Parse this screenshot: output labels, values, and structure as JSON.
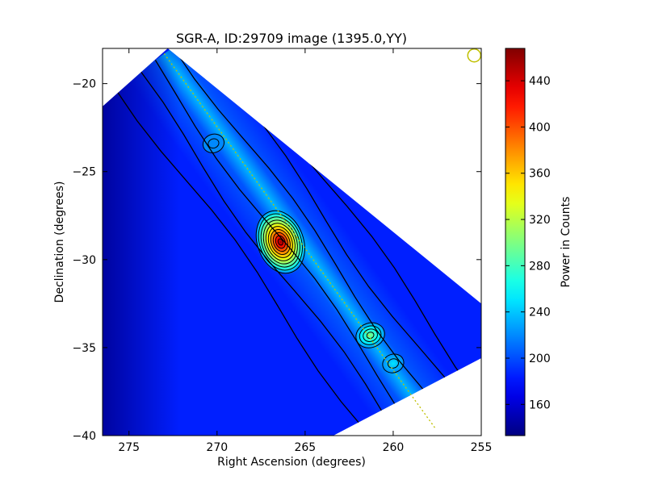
{
  "chart_data": {
    "type": "heatmap",
    "title": "SGR-A, ID:29709 image (1395.0,YY)",
    "xlabel": "Right Ascension (degrees)",
    "ylabel": "Declination (degrees)",
    "colorbar_label": "Power in Counts",
    "xlim": [
      276.5,
      255.0
    ],
    "ylim": [
      -40.0,
      -18.0
    ],
    "x_ticks": [
      275,
      270,
      265,
      260,
      255
    ],
    "y_ticks": [
      -20,
      -25,
      -30,
      -35,
      -40
    ],
    "colorbar_range": [
      133,
      468
    ],
    "colorbar_ticks": [
      160,
      200,
      240,
      280,
      320,
      360,
      400,
      440
    ],
    "colormap": "jet",
    "grid": false,
    "image_region": {
      "corners": [
        [
          272.8,
          -18.0
        ],
        [
          255.0,
          -32.5
        ],
        [
          255.0,
          -35.6
        ],
        [
          263.4,
          -40.0
        ],
        [
          276.5,
          -40.0
        ],
        [
          276.5,
          -21.3
        ]
      ],
      "background_level": 185
    },
    "sources": [
      {
        "ra": 266.4,
        "dec": -29.0,
        "peak": 460
      },
      {
        "ra": 261.3,
        "dec": -34.3,
        "peak": 300
      },
      {
        "ra": 260.0,
        "dec": -35.9,
        "peak": 250
      },
      {
        "ra": 270.2,
        "dec": -23.4,
        "peak": 220
      }
    ],
    "scan_line": {
      "start": [
        273.0,
        -18.3
      ],
      "end": [
        257.6,
        -39.6
      ],
      "color": "#bfbf00"
    },
    "beam_marker": {
      "ra": 255.4,
      "dec": -18.4,
      "color": "#bfbf00"
    }
  }
}
